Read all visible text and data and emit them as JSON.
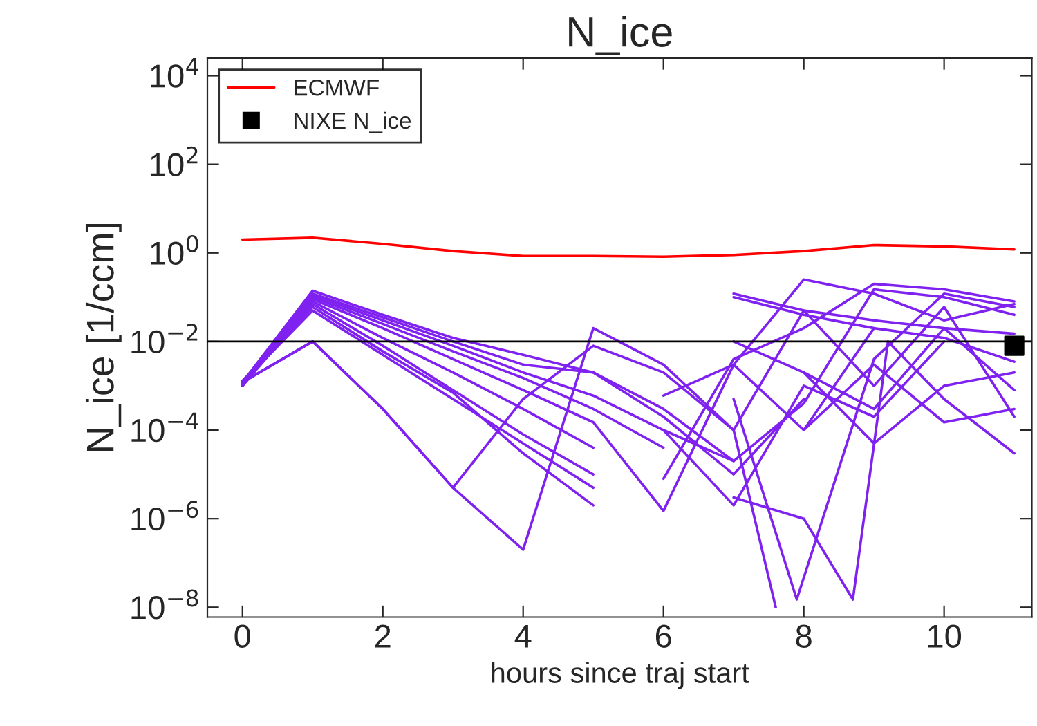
{
  "chart_data": {
    "type": "line",
    "title": "N_ice",
    "xlabel": "hours since traj start",
    "ylabel": "N_ice [1/ccm]",
    "log": "y",
    "grid": false,
    "legend": "top left",
    "xlim": [
      -0.5,
      11.25
    ],
    "xticks": [
      0,
      2,
      4,
      6,
      8,
      10
    ],
    "ylim": [
      6e-09,
      25000
    ],
    "yticks": [
      {
        "value": 1e-08,
        "label": "10$^{−8}$"
      },
      {
        "value": 1e-06,
        "label": "10$^{−6}$"
      },
      {
        "value": 0.0001,
        "label": "10$^{−4}$"
      },
      {
        "value": 0.01,
        "label": "10$^{−2}$"
      },
      {
        "value": 1,
        "label": "10$^{0}$"
      },
      {
        "value": 100,
        "label": "10$^{2}$"
      },
      {
        "value": 10000,
        "label": "10$^{4}$"
      }
    ],
    "ref_lines": [
      {
        "axis": "y",
        "value": 0.01,
        "color": "#000000"
      }
    ],
    "series": [
      {
        "name": "ECMWF",
        "color": "#ff0000",
        "x": [
          0,
          1,
          2,
          3,
          4,
          5,
          6,
          7,
          8,
          9,
          10,
          11
        ],
        "values": [
          2.0,
          2.2,
          1.6,
          1.1,
          0.85,
          0.85,
          0.82,
          0.9,
          1.1,
          1.5,
          1.4,
          1.2
        ]
      },
      {
        "type": "line",
        "color": "#7f22f0",
        "x": [
          0,
          1,
          2,
          3,
          4,
          5
        ],
        "values": [
          0.0012,
          0.05,
          0.005,
          0.0005,
          5e-05,
          5e-06
        ]
      },
      {
        "type": "line",
        "color": "#7f22f0",
        "x": [
          0,
          1,
          2,
          3,
          4,
          5
        ],
        "values": [
          0.001,
          0.07,
          0.008,
          0.0008,
          8e-05,
          1e-05
        ]
      },
      {
        "type": "line",
        "color": "#7f22f0",
        "x": [
          0,
          1,
          2,
          3,
          4,
          5
        ],
        "values": [
          0.0013,
          0.06,
          0.006,
          0.0007,
          3e-05,
          2e-06
        ]
      },
      {
        "type": "line",
        "color": "#7f22f0",
        "x": [
          0,
          1,
          2,
          3,
          4,
          5
        ],
        "values": [
          0.001,
          0.08,
          0.012,
          0.002,
          0.0003,
          4e-05
        ]
      },
      {
        "type": "line",
        "color": "#7f22f0",
        "x": [
          0,
          1,
          2,
          3,
          4,
          5,
          6
        ],
        "values": [
          0.001,
          0.1,
          0.025,
          0.006,
          0.0015,
          0.0003,
          4e-05
        ]
      },
      {
        "type": "line",
        "color": "#7f22f0",
        "x": [
          0,
          1,
          2,
          3,
          4,
          5,
          6,
          7
        ],
        "values": [
          0.0011,
          0.12,
          0.035,
          0.01,
          0.003,
          0.002,
          0.0003,
          2e-05
        ]
      },
      {
        "type": "line",
        "color": "#7f22f0",
        "x": [
          0,
          1,
          2,
          3,
          4,
          5,
          6,
          7,
          8
        ],
        "values": [
          0.0012,
          0.14,
          0.04,
          0.012,
          0.005,
          0.002,
          0.0002,
          1e-05,
          0.0005
        ]
      },
      {
        "type": "line",
        "color": "#7f22f0",
        "x": [
          0,
          1,
          2,
          3,
          4,
          5,
          6,
          7,
          8,
          9
        ],
        "values": [
          0.001,
          0.09,
          0.02,
          0.004,
          0.0008,
          0.00015,
          1.5e-06,
          0.003,
          0.0001,
          0.02
        ]
      },
      {
        "type": "line",
        "color": "#7f22f0",
        "x": [
          0,
          1,
          2,
          3,
          4,
          5,
          6,
          7,
          8,
          9,
          10
        ],
        "values": [
          0.0011,
          0.11,
          0.03,
          0.008,
          0.002,
          0.0006,
          0.0001,
          2e-06,
          0.001,
          0.0002,
          0.01
        ]
      },
      {
        "type": "line",
        "color": "#7f22f0",
        "x": [
          0,
          1,
          2,
          3,
          4,
          5,
          6,
          7,
          7.6
        ],
        "values": [
          0.0012,
          0.01,
          0.0003,
          5e-06,
          2e-07,
          0.02,
          0.003,
          0.0001,
          1e-08
        ]
      },
      {
        "type": "line",
        "color": "#7f22f0",
        "x": [
          0,
          1,
          2,
          3,
          4,
          5,
          6,
          7,
          8,
          9,
          10,
          11
        ],
        "values": [
          0.0012,
          0.01,
          0.0003,
          5e-06,
          0.0005,
          0.008,
          0.002,
          0.0001,
          0.05,
          0.001,
          0.06,
          0.0002
        ]
      },
      {
        "type": "line",
        "color": "#7f22f0",
        "x": [
          7,
          8,
          9,
          10,
          11
        ],
        "values": [
          0.12,
          0.05,
          0.03,
          0.02,
          0.015
        ]
      },
      {
        "type": "line",
        "color": "#7f22f0",
        "x": [
          7,
          8,
          9,
          10,
          11
        ],
        "values": [
          0.1,
          0.04,
          0.02,
          0.012,
          0.0035
        ]
      },
      {
        "type": "line",
        "color": "#7f22f0",
        "x": [
          7,
          8,
          9,
          10,
          11
        ],
        "values": [
          0.01,
          0.002,
          0.0003,
          0.02,
          0.0008
        ]
      },
      {
        "type": "line",
        "color": "#7f22f0",
        "x": [
          6,
          7,
          8,
          9,
          10,
          11
        ],
        "values": [
          0.0006,
          0.003,
          0.25,
          0.12,
          0.03,
          0.07
        ]
      },
      {
        "type": "line",
        "color": "#7f22f0",
        "x": [
          6,
          7,
          8,
          9,
          10,
          11
        ],
        "values": [
          8e-06,
          0.004,
          0.02,
          0.2,
          0.15,
          0.08
        ]
      },
      {
        "type": "line",
        "color": "#7f22f0",
        "x": [
          6,
          7,
          8,
          9,
          10,
          11
        ],
        "values": [
          0.0001,
          2e-05,
          0.0004,
          0.15,
          0.1,
          0.04
        ]
      },
      {
        "type": "line",
        "color": "#7f22f0",
        "x": [
          7,
          7.9,
          9,
          10,
          11
        ],
        "values": [
          0.0005,
          1.5e-08,
          0.004,
          0.12,
          0.06
        ]
      },
      {
        "type": "line",
        "color": "#7f22f0",
        "x": [
          7,
          8,
          8.7,
          9.2,
          10,
          11
        ],
        "values": [
          3e-06,
          1e-06,
          1.5e-08,
          0.01,
          0.0005,
          3e-05
        ]
      },
      {
        "type": "line",
        "color": "#7f22f0",
        "x": [
          8,
          9,
          10,
          11
        ],
        "values": [
          0.0001,
          0.003,
          0.00015,
          0.0003
        ]
      },
      {
        "type": "line",
        "color": "#7f22f0",
        "x": [
          8,
          9,
          10,
          11
        ],
        "values": [
          0.002,
          5e-05,
          0.001,
          0.002
        ]
      },
      {
        "name": "NIXE N_ice",
        "type": "scatter",
        "marker": "square",
        "color": "#000000",
        "x": [
          11
        ],
        "values": [
          0.008
        ]
      }
    ]
  }
}
